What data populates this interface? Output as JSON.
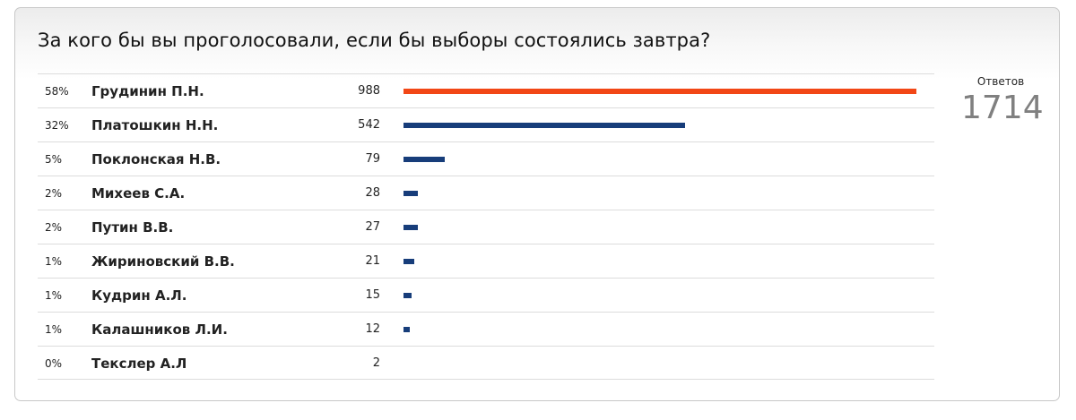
{
  "poll": {
    "title": "За кого бы вы проголосовали, если бы выборы состоялись завтра?",
    "total_label": "Ответов",
    "total_value": "1714"
  },
  "colors": {
    "leader_bar": "#f24716",
    "bar": "#173d7a"
  },
  "chart_data": {
    "type": "bar",
    "orientation": "horizontal",
    "title": "За кого бы вы проголосовали, если бы выборы состоялись завтра?",
    "categories": [
      "Грудинин П.Н.",
      "Платошкин Н.Н.",
      "Поклонская Н.В.",
      "Михеев С.А.",
      "Путин В.В.",
      "Жириновский В.В.",
      "Кудрин А.Л.",
      "Калашников Л.И.",
      "Текслер А.Л"
    ],
    "values": [
      988,
      542,
      79,
      28,
      27,
      21,
      15,
      12,
      2
    ],
    "percents": [
      "58%",
      "32%",
      "5%",
      "2%",
      "2%",
      "1%",
      "1%",
      "1%",
      "0%"
    ],
    "rows": [
      {
        "pct": "58%",
        "name": "Грудинин П.Н.",
        "count": "988"
      },
      {
        "pct": "32%",
        "name": "Платошкин Н.Н.",
        "count": "542"
      },
      {
        "pct": "5%",
        "name": "Поклонская Н.В.",
        "count": "79"
      },
      {
        "pct": "2%",
        "name": "Михеев С.А.",
        "count": "28"
      },
      {
        "pct": "2%",
        "name": "Путин В.В.",
        "count": "27"
      },
      {
        "pct": "1%",
        "name": "Жириновский В.В.",
        "count": "21"
      },
      {
        "pct": "1%",
        "name": "Кудрин А.Л.",
        "count": "15"
      },
      {
        "pct": "1%",
        "name": "Калашников Л.И.",
        "count": "12"
      },
      {
        "pct": "0%",
        "name": "Текслер А.Л",
        "count": "2"
      }
    ],
    "grid": true,
    "legend": "none"
  }
}
